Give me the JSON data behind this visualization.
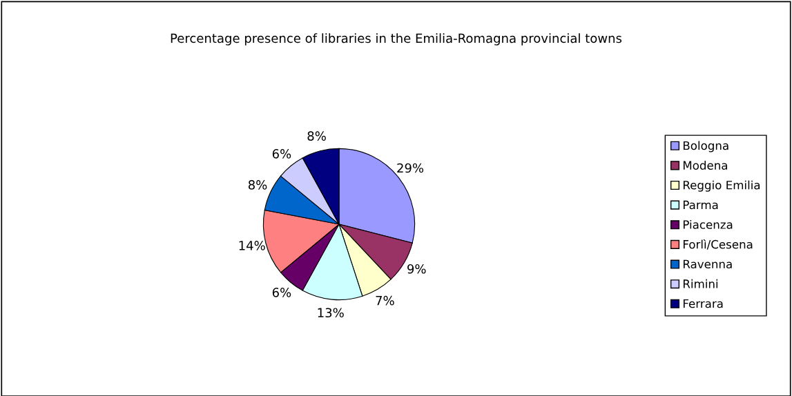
{
  "chart_data": {
    "type": "pie",
    "title": "Percentage presence of libraries in the Emilia-Romagna provincial towns",
    "categories": [
      "Bologna",
      "Modena",
      "Reggio Emilia",
      "Parma",
      "Piacenza",
      "Forlì/Cesena",
      "Ravenna",
      "Rimini",
      "Ferrara"
    ],
    "values": [
      29,
      9,
      7,
      13,
      6,
      14,
      8,
      6,
      8
    ],
    "colors": [
      "#9999ff",
      "#993366",
      "#ffffcc",
      "#ccffff",
      "#660066",
      "#ff8080",
      "#0066cc",
      "#ccccff",
      "#000080"
    ],
    "value_labels": [
      "29%",
      "9%",
      "7%",
      "13%",
      "6%",
      "14%",
      "8%",
      "6%",
      "8%"
    ],
    "legend": "right"
  }
}
